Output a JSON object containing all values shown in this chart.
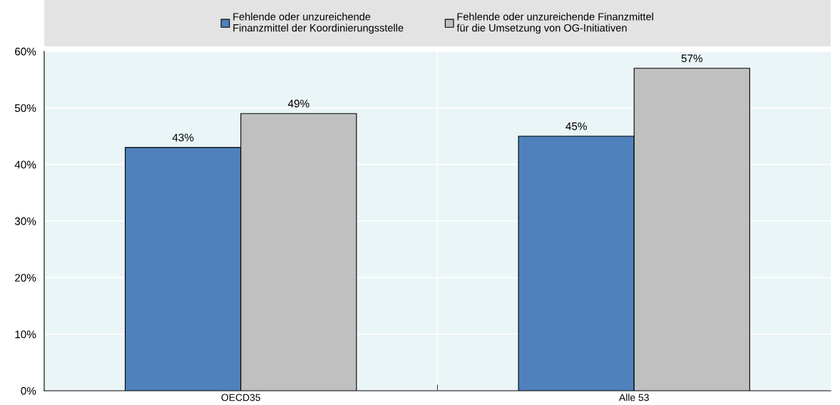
{
  "chart_data": {
    "type": "bar",
    "categories": [
      "OECD35",
      "Alle 53"
    ],
    "series": [
      {
        "name": "Fehlende oder unzureichende\nFinanzmittel der Koordinierungsstelle",
        "color": "#4f81bd",
        "values": [
          43,
          45
        ],
        "value_labels": [
          "43%",
          "45%"
        ]
      },
      {
        "name": "Fehlende oder unzureichende Finanzmittel\nfür die Umsetzung von OG-Initiativen",
        "color": "#c0c0c0",
        "values": [
          49,
          57
        ],
        "value_labels": [
          "49%",
          "57%"
        ]
      }
    ],
    "ylim": [
      0,
      60
    ],
    "yticks": [
      {
        "value": 0,
        "label": "0%"
      },
      {
        "value": 10,
        "label": "10%"
      },
      {
        "value": 20,
        "label": "20%"
      },
      {
        "value": 30,
        "label": "30%"
      },
      {
        "value": 40,
        "label": "40%"
      },
      {
        "value": 50,
        "label": "50%"
      },
      {
        "value": 60,
        "label": "60%"
      }
    ],
    "grid": true,
    "legend": "top"
  }
}
